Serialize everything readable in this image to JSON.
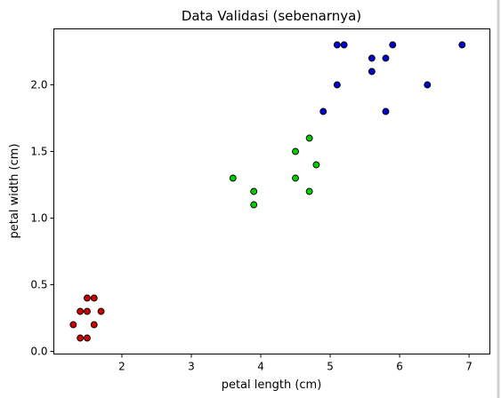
{
  "chart_data": {
    "type": "scatter",
    "title": "Data Validasi (sebenarnya)",
    "xlabel": "petal length (cm)",
    "ylabel": "petal width (cm)",
    "xlim": [
      1.02,
      7.3
    ],
    "ylim": [
      -0.02,
      2.42
    ],
    "xticks": [
      2,
      3,
      4,
      5,
      6,
      7
    ],
    "xtick_labels": [
      "2",
      "3",
      "4",
      "5",
      "6",
      "7"
    ],
    "yticks": [
      0.0,
      0.5,
      1.0,
      1.5,
      2.0
    ],
    "ytick_labels": [
      "0.0",
      "0.5",
      "1.0",
      "1.5",
      "2.0"
    ],
    "grid": false,
    "legend": "none",
    "marker_edge_color": "#000000",
    "series": [
      {
        "color": "#cc0000",
        "points": [
          [
            1.3,
            0.2
          ],
          [
            1.4,
            0.1
          ],
          [
            1.4,
            0.3
          ],
          [
            1.5,
            0.1
          ],
          [
            1.5,
            0.3
          ],
          [
            1.5,
            0.4
          ],
          [
            1.6,
            0.2
          ],
          [
            1.6,
            0.4
          ],
          [
            1.7,
            0.3
          ]
        ]
      },
      {
        "color": "#00cc00",
        "points": [
          [
            3.6,
            1.3
          ],
          [
            3.9,
            1.2
          ],
          [
            3.9,
            1.1
          ],
          [
            4.5,
            1.5
          ],
          [
            4.5,
            1.3
          ],
          [
            4.7,
            1.6
          ],
          [
            4.7,
            1.2
          ],
          [
            4.8,
            1.4
          ]
        ]
      },
      {
        "color": "#0000cc",
        "points": [
          [
            4.9,
            1.8
          ],
          [
            5.1,
            2.3
          ],
          [
            5.1,
            2.0
          ],
          [
            5.2,
            2.3
          ],
          [
            5.6,
            2.2
          ],
          [
            5.6,
            2.1
          ],
          [
            5.8,
            2.2
          ],
          [
            5.8,
            1.8
          ],
          [
            5.9,
            2.3
          ],
          [
            6.4,
            2.0
          ],
          [
            6.9,
            2.3
          ]
        ]
      }
    ]
  }
}
